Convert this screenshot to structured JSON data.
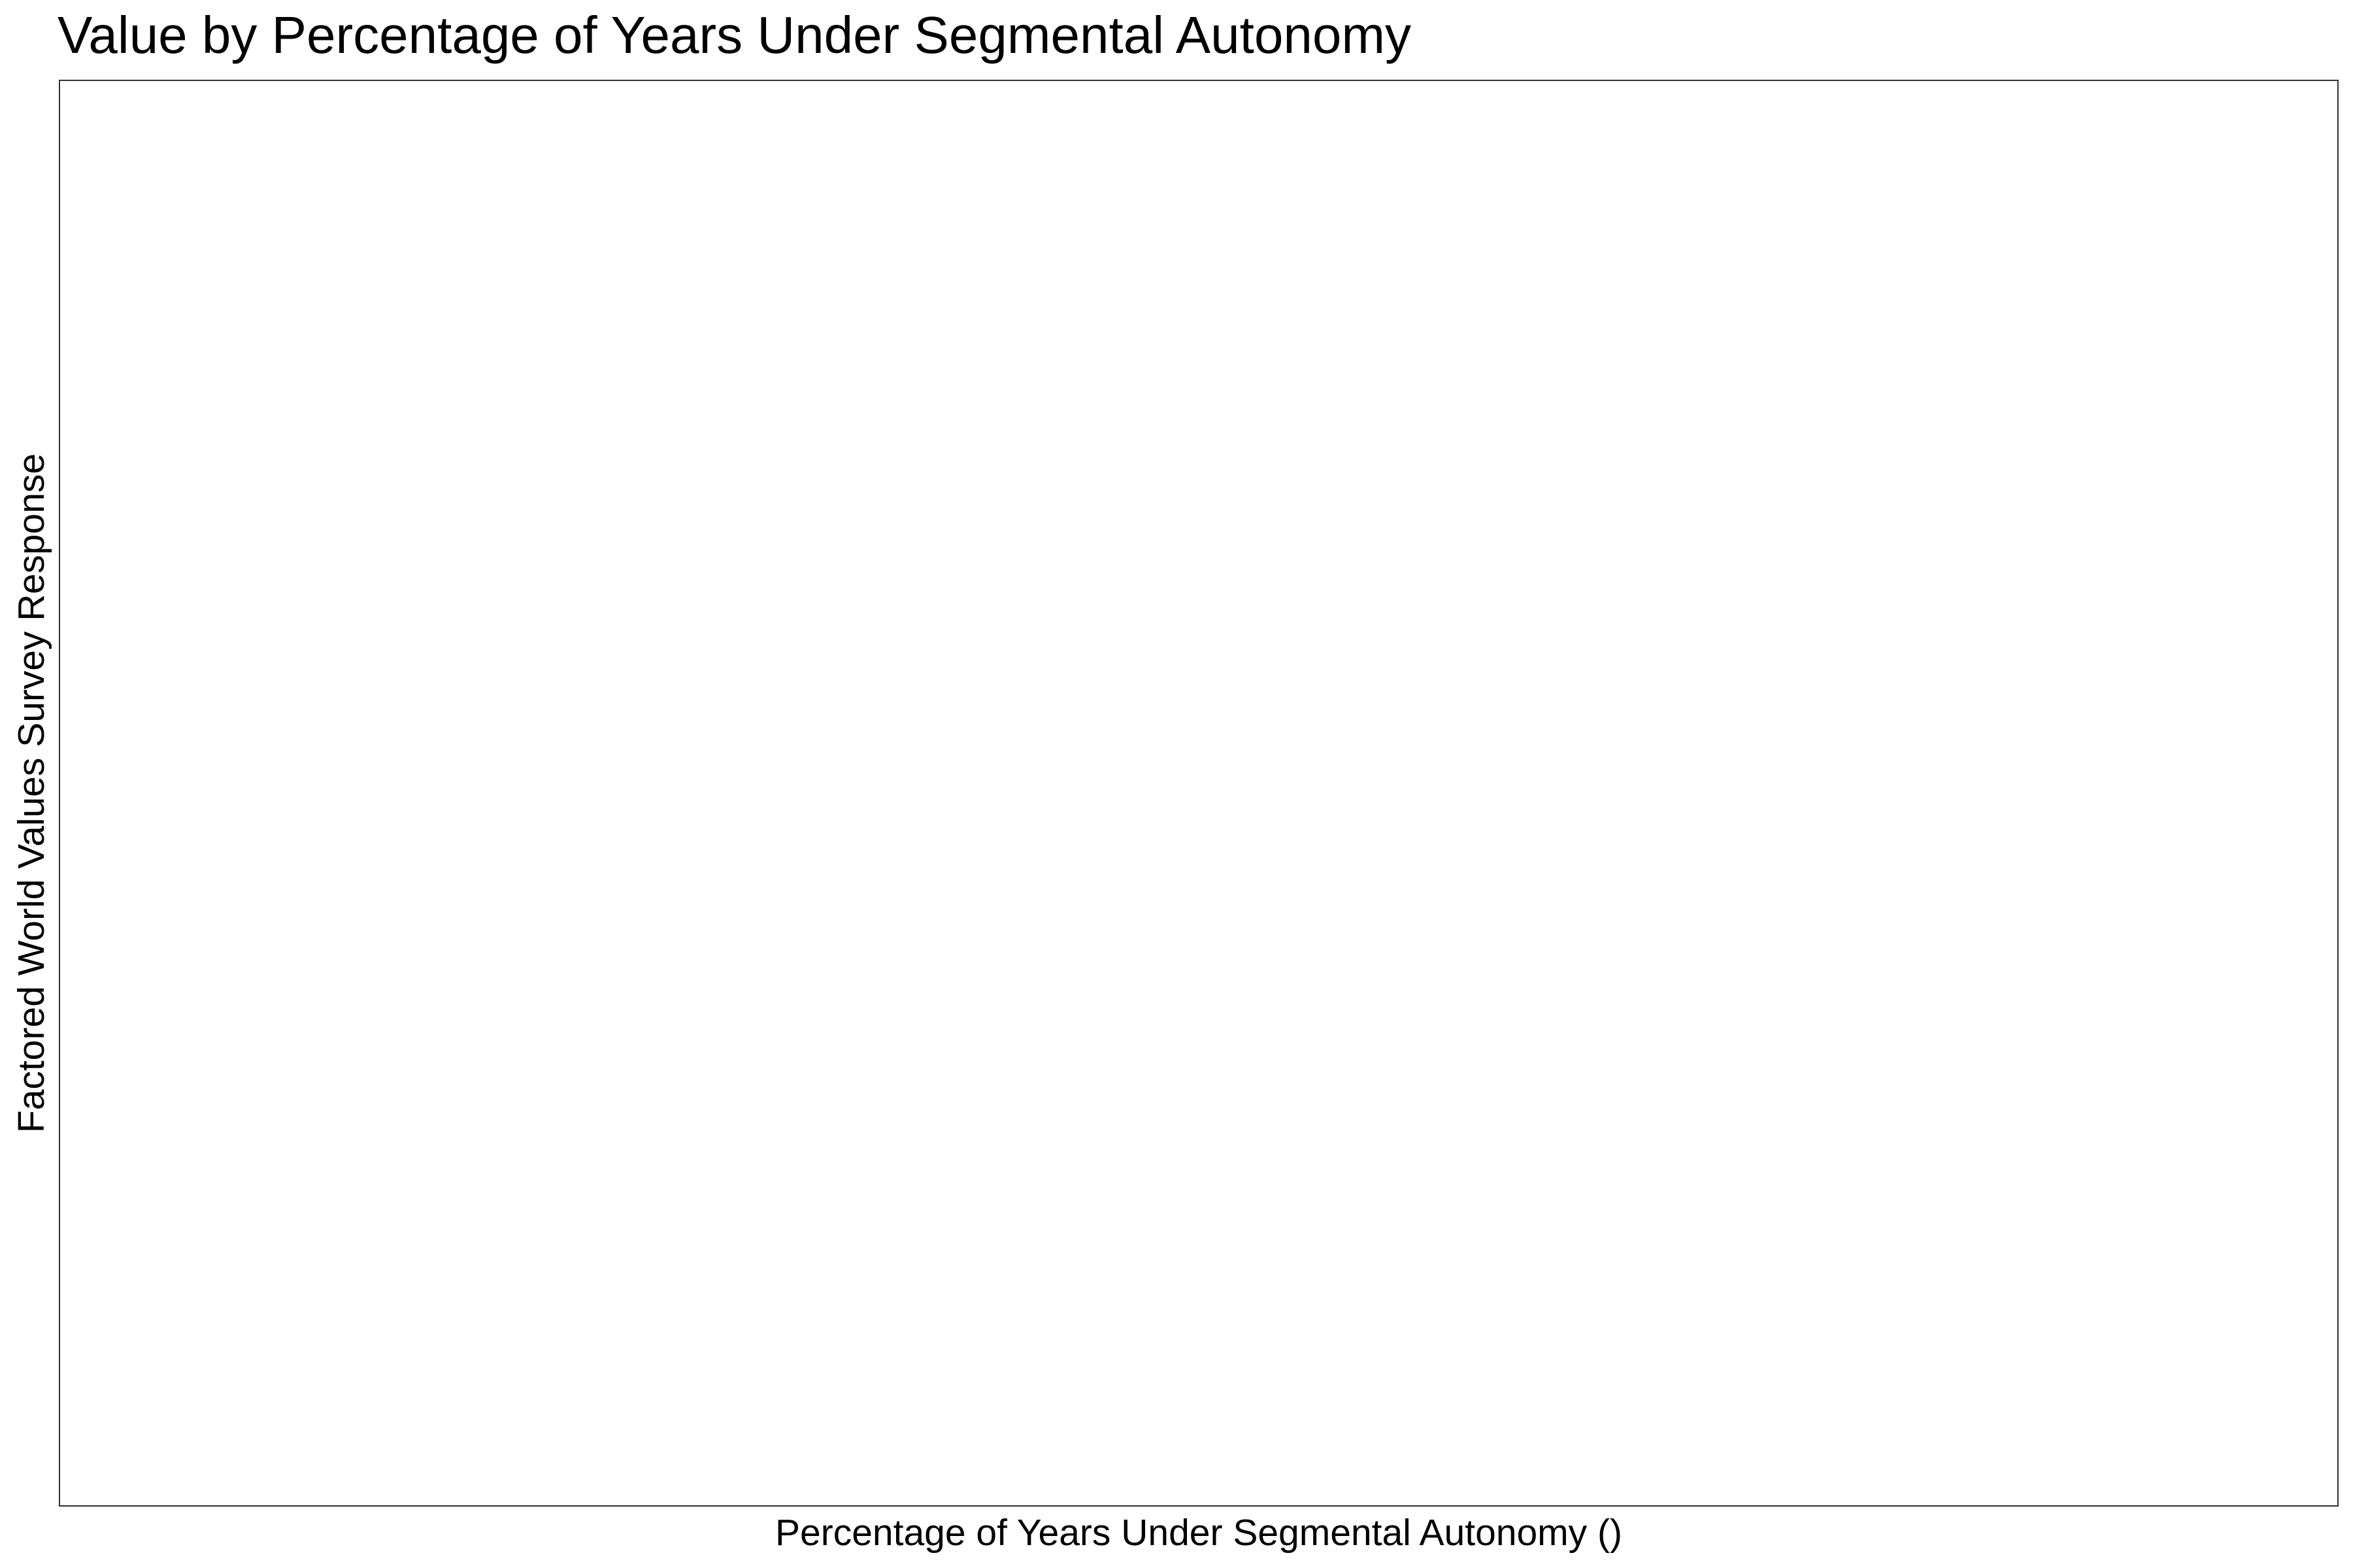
{
  "chart_data": {
    "type": "scatter",
    "title": "Value by Percentage of Years Under Segmental Autonomy",
    "xlabel": "Percentage of Years Under Segmental Autonomy ()",
    "ylabel": "Factored World Values Survey Response",
    "series": [],
    "grid": false,
    "legend": "none"
  }
}
